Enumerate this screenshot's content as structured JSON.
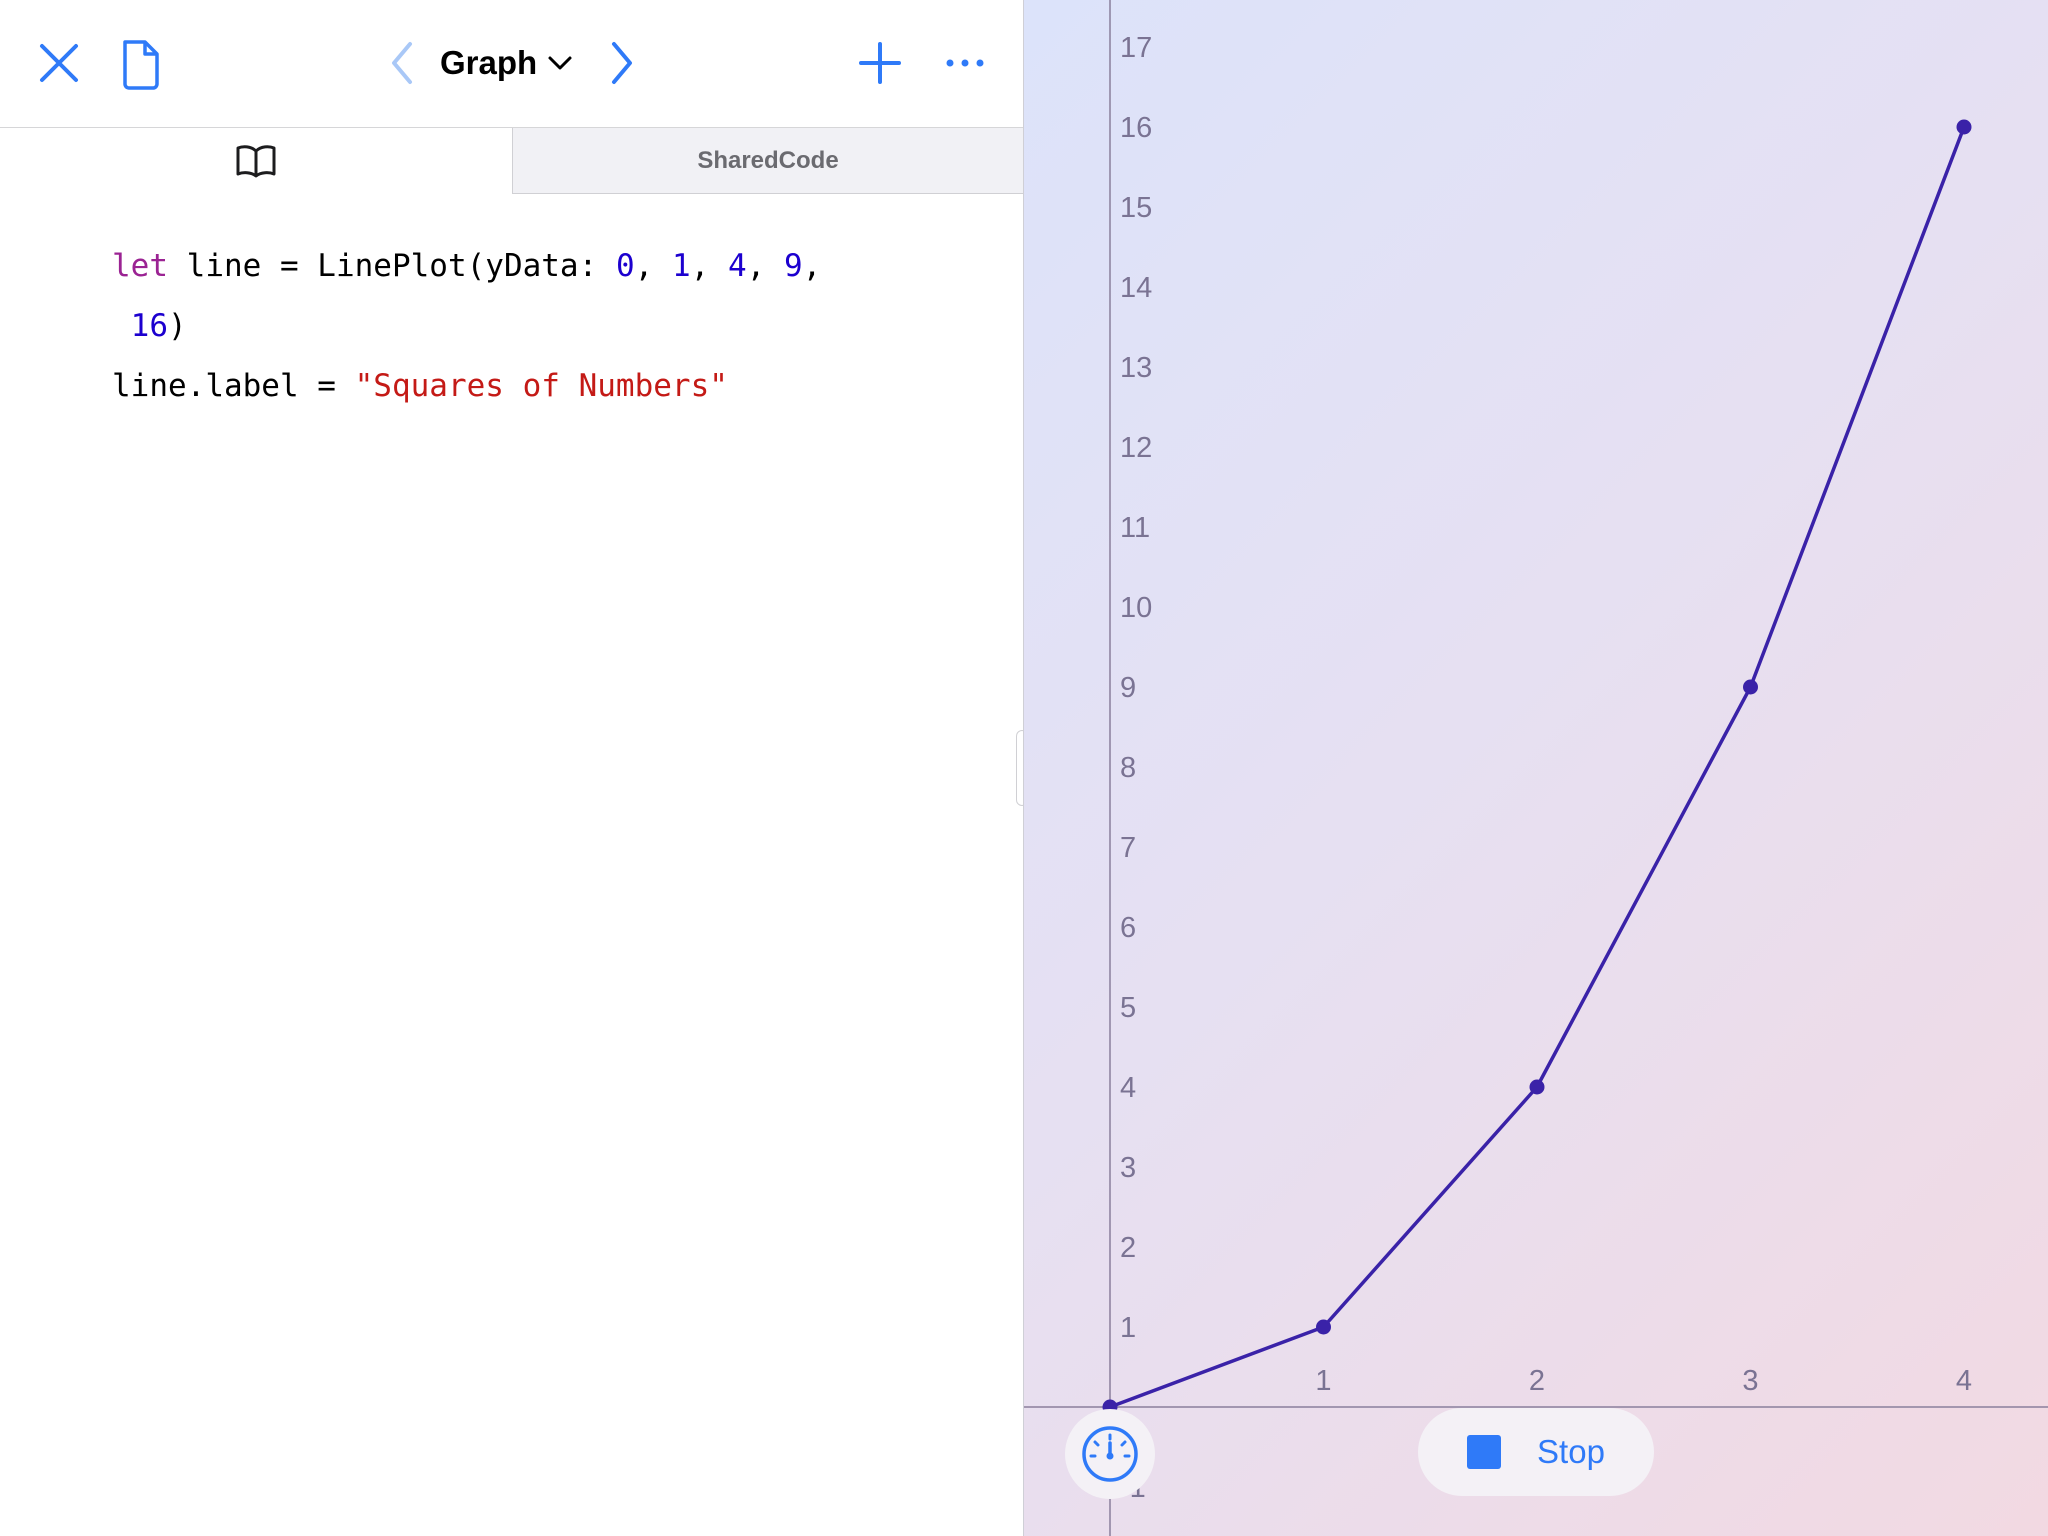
{
  "toolbar": {
    "title": "Graph",
    "icons": {
      "close": "close-icon",
      "document": "document-icon",
      "back": "chevron-left-icon",
      "forward": "chevron-right-icon",
      "dropdown": "chevron-down-icon",
      "add": "plus-icon",
      "more": "ellipsis-icon"
    }
  },
  "tabs": {
    "book_icon": "book-icon",
    "shared_label": "SharedCode"
  },
  "code": {
    "line1": {
      "kw": "let",
      "text1": " line = LinePlot(yData: ",
      "n0": "0",
      "n1": "1",
      "n2": "4",
      "n3": "9",
      "sep": ", ",
      "trail": ","
    },
    "line2": {
      "indent": " ",
      "n4": "16",
      "close": ")"
    },
    "line3": {
      "text": "line.label = ",
      "str": "\"Squares of Numbers\""
    }
  },
  "live_view": {
    "stop_label": "Stop",
    "meter_icon": "speedometer-icon",
    "stop_icon": "stop-square-icon"
  },
  "colors": {
    "accent": "#2f7af8",
    "line": "#3a22a8",
    "tick": "#7a7393"
  },
  "chart_data": {
    "type": "line",
    "x": [
      0,
      1,
      2,
      3,
      4
    ],
    "series": [
      {
        "values": [
          0,
          1,
          4,
          9,
          16
        ]
      }
    ],
    "x_ticks": [
      "1",
      "2",
      "3",
      "4"
    ],
    "y_ticks": [
      "1",
      "2",
      "3",
      "4",
      "5",
      "6",
      "7",
      "8",
      "9",
      "10",
      "11",
      "12",
      "13",
      "14",
      "15",
      "16",
      "17"
    ],
    "y_tick_below": "-1",
    "xlim": [
      0,
      4
    ],
    "ylim": [
      -1,
      17
    ],
    "grid": false
  }
}
